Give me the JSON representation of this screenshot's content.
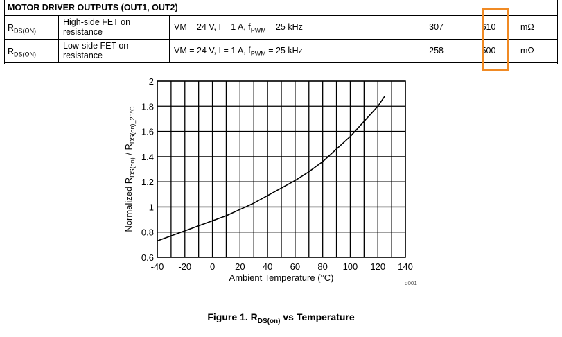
{
  "table": {
    "section_title": "MOTOR DRIVER OUTPUTS (OUT1, OUT2)",
    "rows": [
      {
        "symbol_main": "R",
        "symbol_sub": "DS(ON)",
        "description_line1": "High-side FET on",
        "description_line2": "resistance",
        "condition_pre": "VM = 24 V, I = 1 A, f",
        "condition_sub": "PWM",
        "condition_post": " = 25 kHz",
        "typ": "307",
        "max": "610",
        "unit": "mΩ"
      },
      {
        "symbol_main": "R",
        "symbol_sub": "DS(ON)",
        "description_line1": "Low-side FET on",
        "description_line2": "resistance",
        "condition_pre": "VM = 24 V, I = 1 A, f",
        "condition_sub": "PWM",
        "condition_post": " = 25 kHz",
        "typ": "258",
        "max": "500",
        "unit": "mΩ"
      }
    ],
    "highlight_color": "#f08a24"
  },
  "chart_data": {
    "type": "line",
    "xlabel": "Ambient Temperature (°C)",
    "ylabel_pre": "Normalized R",
    "ylabel_sub1": "DS(on)",
    "ylabel_mid": " / R",
    "ylabel_sub2": "DS(on)_25°C",
    "xlim": [
      -40,
      140
    ],
    "ylim": [
      0.6,
      2
    ],
    "x_ticks": [
      -40,
      -20,
      0,
      20,
      40,
      60,
      80,
      100,
      120,
      140
    ],
    "y_ticks": [
      0.6,
      0.8,
      1,
      1.2,
      1.4,
      1.6,
      1.8,
      2
    ],
    "y_tick_labels": [
      "0.6",
      "0.8",
      "1",
      "1.2",
      "1.4",
      "1.6",
      "1.8",
      "2"
    ],
    "x_gridlines": [
      -40,
      -30,
      -20,
      -10,
      0,
      10,
      20,
      30,
      40,
      50,
      60,
      70,
      80,
      90,
      100,
      110,
      120,
      130,
      140
    ],
    "y_gridlines": [
      0.6,
      0.8,
      1.0,
      1.2,
      1.4,
      1.6,
      1.8,
      2.0
    ],
    "grid": true,
    "series": [
      {
        "x": [
          -40,
          -30,
          -20,
          -10,
          0,
          10,
          20,
          30,
          40,
          50,
          60,
          70,
          80,
          90,
          100,
          110,
          120,
          125
        ],
        "y": [
          0.73,
          0.77,
          0.81,
          0.85,
          0.89,
          0.93,
          0.98,
          1.03,
          1.09,
          1.15,
          1.21,
          1.28,
          1.36,
          1.46,
          1.56,
          1.68,
          1.8,
          1.88
        ],
        "color": "#000000"
      }
    ],
    "code": "d001"
  },
  "caption": {
    "pre": "Figure 1. R",
    "sub": "DS(on)",
    "post": " vs Temperature"
  }
}
